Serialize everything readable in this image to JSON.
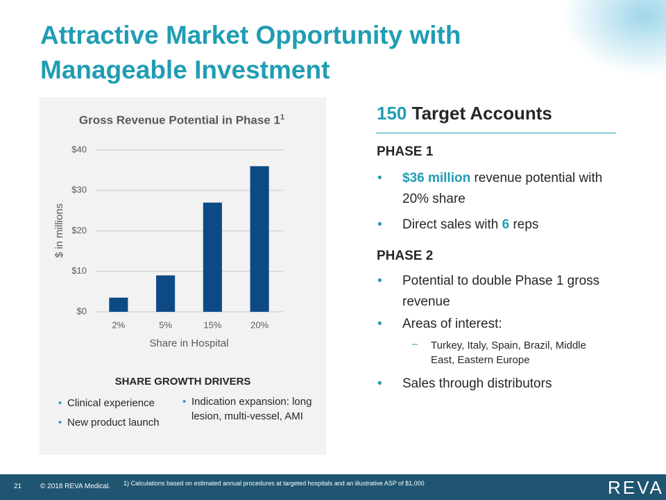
{
  "title": "Attractive Market Opportunity with Manageable Investment",
  "chart_data": {
    "type": "bar",
    "title": "Gross Revenue Potential in Phase 1",
    "title_sup": "1",
    "x_label": "Share in Hospital",
    "y_label": "$ in millions",
    "categories": [
      "2%",
      "5%",
      "15%",
      "20%"
    ],
    "values": [
      3.5,
      9,
      27,
      36
    ],
    "color": "#0d4a85",
    "ylim": [
      0,
      40
    ],
    "yticks": [
      {
        "value": 0,
        "label": "$0"
      },
      {
        "value": 10,
        "label": "$10"
      },
      {
        "value": 20,
        "label": "$20"
      },
      {
        "value": 30,
        "label": "$30"
      },
      {
        "value": 40,
        "label": "$40"
      }
    ],
    "grid": true
  },
  "drivers": {
    "heading": "SHARE GROWTH DRIVERS",
    "left": [
      "Clinical experience",
      "New product launch"
    ],
    "right": [
      "Indication expansion: long lesion, multi-vessel, AMI"
    ]
  },
  "accounts": {
    "heading": [
      "150",
      " Target Accounts"
    ],
    "phase1": {
      "heading": "PHASE 1",
      "bullets": [
        [
          "$36 million",
          " revenue potential with 20% share"
        ],
        [
          "Direct sales with ",
          "6",
          " reps"
        ]
      ]
    },
    "phase2": {
      "heading": "PHASE 2",
      "bullets": [
        "Potential to double Phase 1 gross revenue",
        "Areas of interest:",
        "Sales through distributors"
      ],
      "sub": "Turkey, Italy, Spain, Brazil, Middle East, Eastern Europe"
    }
  },
  "footer": {
    "page": "21",
    "copyright": "© 2018 REVA Medical.",
    "note": "1) Calculations based on estimated annual procedures at targeted hospitals and an illustrative ASP of $1,000",
    "logo": "REVA"
  }
}
